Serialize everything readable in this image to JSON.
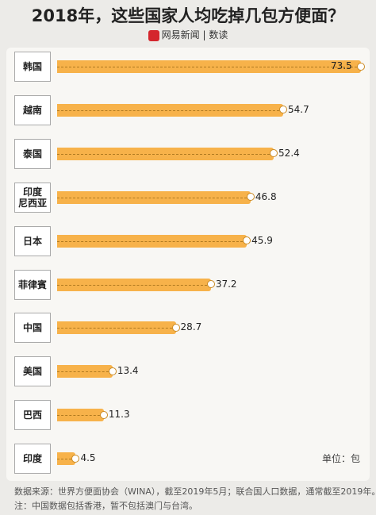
{
  "chart_data": {
    "type": "bar",
    "orientation": "horizontal",
    "title": "2018年，这些国家人均吃掉几包方便面？",
    "brand": "网易新闻",
    "column": "数读",
    "categories": [
      "韩国",
      "越南",
      "泰国",
      "印度\n尼西亚",
      "日本",
      "菲律賓",
      "中国",
      "美国",
      "巴西",
      "印度"
    ],
    "values": [
      73.5,
      54.7,
      52.4,
      46.8,
      45.9,
      37.2,
      28.7,
      13.4,
      11.3,
      4.5
    ],
    "color": "#f7b24a",
    "unit": "单位：包",
    "source": "数据来源：世界方便面协会（WINA），截至2019年5月；联合国人口数据，通常截至2019年。",
    "note": "注：中国数据包括香港，暂不包括澳门与台湾。"
  }
}
